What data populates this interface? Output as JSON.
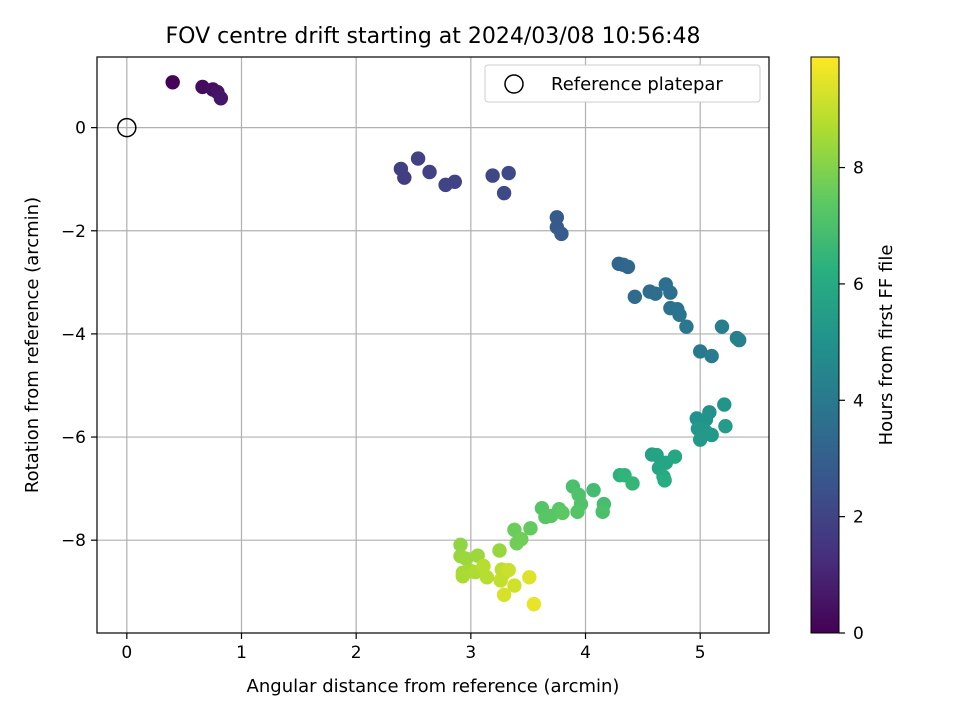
{
  "chart_data": {
    "type": "scatter",
    "title": "FOV centre drift starting at 2024/03/08 10:56:48",
    "xlabel": "Angular distance from reference (arcmin)",
    "ylabel": "Rotation from reference (arcmin)",
    "colorbar_label": "Hours from first FF file",
    "xlim": [
      -0.26,
      5.6
    ],
    "ylim": [
      -9.8,
      1.37
    ],
    "xticks": [
      0,
      1,
      2,
      3,
      4,
      5
    ],
    "yticks": [
      0,
      -2,
      -4,
      -6,
      -8
    ],
    "colorbar_range": [
      0,
      9.9
    ],
    "colorbar_ticks": [
      0,
      2,
      4,
      6,
      8
    ],
    "grid": true,
    "legend": {
      "position": "top-right",
      "entries": [
        "Reference platepar"
      ]
    },
    "reference_point": {
      "x": 0,
      "y": 0
    },
    "points": [
      {
        "x": 0.4,
        "y": 0.88,
        "h": 0.05
      },
      {
        "x": 0.66,
        "y": 0.79,
        "h": 0.3
      },
      {
        "x": 0.75,
        "y": 0.74,
        "h": 0.4
      },
      {
        "x": 0.79,
        "y": 0.69,
        "h": 0.5
      },
      {
        "x": 0.82,
        "y": 0.57,
        "h": 0.6
      },
      {
        "x": 2.39,
        "y": -0.8,
        "h": 1.8
      },
      {
        "x": 2.42,
        "y": -0.97,
        "h": 1.8
      },
      {
        "x": 2.54,
        "y": -0.6,
        "h": 1.9
      },
      {
        "x": 2.64,
        "y": -0.86,
        "h": 1.9
      },
      {
        "x": 2.78,
        "y": -1.11,
        "h": 2.0
      },
      {
        "x": 2.86,
        "y": -1.05,
        "h": 2.0
      },
      {
        "x": 3.19,
        "y": -0.93,
        "h": 2.1
      },
      {
        "x": 3.29,
        "y": -1.27,
        "h": 2.2
      },
      {
        "x": 3.33,
        "y": -0.88,
        "h": 2.2
      },
      {
        "x": 3.75,
        "y": -1.74,
        "h": 2.8
      },
      {
        "x": 3.75,
        "y": -1.93,
        "h": 2.8
      },
      {
        "x": 3.79,
        "y": -2.06,
        "h": 2.9
      },
      {
        "x": 4.29,
        "y": -2.64,
        "h": 3.2
      },
      {
        "x": 4.33,
        "y": -2.66,
        "h": 3.2
      },
      {
        "x": 4.37,
        "y": -2.7,
        "h": 3.3
      },
      {
        "x": 4.43,
        "y": -3.28,
        "h": 3.4
      },
      {
        "x": 4.56,
        "y": -3.18,
        "h": 3.5
      },
      {
        "x": 4.61,
        "y": -3.22,
        "h": 3.5
      },
      {
        "x": 4.7,
        "y": -3.04,
        "h": 3.6
      },
      {
        "x": 4.74,
        "y": -3.2,
        "h": 3.6
      },
      {
        "x": 4.74,
        "y": -3.5,
        "h": 3.7
      },
      {
        "x": 4.8,
        "y": -3.52,
        "h": 3.7
      },
      {
        "x": 4.82,
        "y": -3.63,
        "h": 3.8
      },
      {
        "x": 4.88,
        "y": -3.86,
        "h": 3.9
      },
      {
        "x": 5.0,
        "y": -4.34,
        "h": 4.0
      },
      {
        "x": 5.1,
        "y": -4.43,
        "h": 4.1
      },
      {
        "x": 5.19,
        "y": -3.86,
        "h": 4.2
      },
      {
        "x": 5.32,
        "y": -4.08,
        "h": 4.2
      },
      {
        "x": 5.34,
        "y": -4.12,
        "h": 4.3
      },
      {
        "x": 4.97,
        "y": -5.64,
        "h": 5.0
      },
      {
        "x": 5.08,
        "y": -5.52,
        "h": 5.0
      },
      {
        "x": 5.05,
        "y": -5.66,
        "h": 5.1
      },
      {
        "x": 5.21,
        "y": -5.37,
        "h": 5.1
      },
      {
        "x": 4.98,
        "y": -5.84,
        "h": 5.2
      },
      {
        "x": 5.05,
        "y": -5.9,
        "h": 5.2
      },
      {
        "x": 5.0,
        "y": -6.05,
        "h": 5.3
      },
      {
        "x": 5.1,
        "y": -5.96,
        "h": 5.3
      },
      {
        "x": 5.22,
        "y": -5.79,
        "h": 5.4
      },
      {
        "x": 4.58,
        "y": -6.34,
        "h": 5.6
      },
      {
        "x": 4.62,
        "y": -6.35,
        "h": 5.7
      },
      {
        "x": 4.64,
        "y": -6.6,
        "h": 5.8
      },
      {
        "x": 4.7,
        "y": -6.5,
        "h": 5.8
      },
      {
        "x": 4.78,
        "y": -6.38,
        "h": 5.9
      },
      {
        "x": 4.68,
        "y": -6.77,
        "h": 6.0
      },
      {
        "x": 4.69,
        "y": -6.84,
        "h": 6.1
      },
      {
        "x": 4.3,
        "y": -6.74,
        "h": 6.3
      },
      {
        "x": 4.34,
        "y": -6.74,
        "h": 6.4
      },
      {
        "x": 4.41,
        "y": -6.9,
        "h": 6.5
      },
      {
        "x": 4.07,
        "y": -7.03,
        "h": 6.8
      },
      {
        "x": 4.16,
        "y": -7.3,
        "h": 6.9
      },
      {
        "x": 4.15,
        "y": -7.45,
        "h": 7.0
      },
      {
        "x": 3.89,
        "y": -6.96,
        "h": 7.0
      },
      {
        "x": 3.94,
        "y": -7.12,
        "h": 7.1
      },
      {
        "x": 3.96,
        "y": -7.3,
        "h": 7.1
      },
      {
        "x": 3.93,
        "y": -7.45,
        "h": 7.2
      },
      {
        "x": 3.62,
        "y": -7.38,
        "h": 7.2
      },
      {
        "x": 3.65,
        "y": -7.55,
        "h": 7.3
      },
      {
        "x": 3.7,
        "y": -7.53,
        "h": 7.3
      },
      {
        "x": 3.77,
        "y": -7.4,
        "h": 7.3
      },
      {
        "x": 3.8,
        "y": -7.47,
        "h": 7.4
      },
      {
        "x": 3.52,
        "y": -7.77,
        "h": 7.5
      },
      {
        "x": 3.38,
        "y": -7.8,
        "h": 7.6
      },
      {
        "x": 3.4,
        "y": -8.06,
        "h": 7.7
      },
      {
        "x": 3.44,
        "y": -7.98,
        "h": 7.7
      },
      {
        "x": 2.91,
        "y": -8.09,
        "h": 8.2
      },
      {
        "x": 3.25,
        "y": -8.2,
        "h": 8.3
      },
      {
        "x": 2.91,
        "y": -8.31,
        "h": 8.3
      },
      {
        "x": 2.96,
        "y": -8.36,
        "h": 8.4
      },
      {
        "x": 3.06,
        "y": -8.3,
        "h": 8.4
      },
      {
        "x": 3.0,
        "y": -8.6,
        "h": 8.5
      },
      {
        "x": 2.93,
        "y": -8.63,
        "h": 8.5
      },
      {
        "x": 2.93,
        "y": -8.7,
        "h": 8.6
      },
      {
        "x": 3.04,
        "y": -8.62,
        "h": 8.7
      },
      {
        "x": 3.11,
        "y": -8.5,
        "h": 8.8
      },
      {
        "x": 3.14,
        "y": -8.72,
        "h": 8.8
      },
      {
        "x": 3.27,
        "y": -8.57,
        "h": 8.9
      },
      {
        "x": 3.26,
        "y": -8.78,
        "h": 9.0
      },
      {
        "x": 3.29,
        "y": -8.64,
        "h": 9.0
      },
      {
        "x": 3.33,
        "y": -8.58,
        "h": 9.1
      },
      {
        "x": 3.38,
        "y": -8.88,
        "h": 9.2
      },
      {
        "x": 3.29,
        "y": -9.06,
        "h": 9.3
      },
      {
        "x": 3.51,
        "y": -8.72,
        "h": 9.4
      },
      {
        "x": 3.55,
        "y": -9.24,
        "h": 9.6
      }
    ]
  }
}
